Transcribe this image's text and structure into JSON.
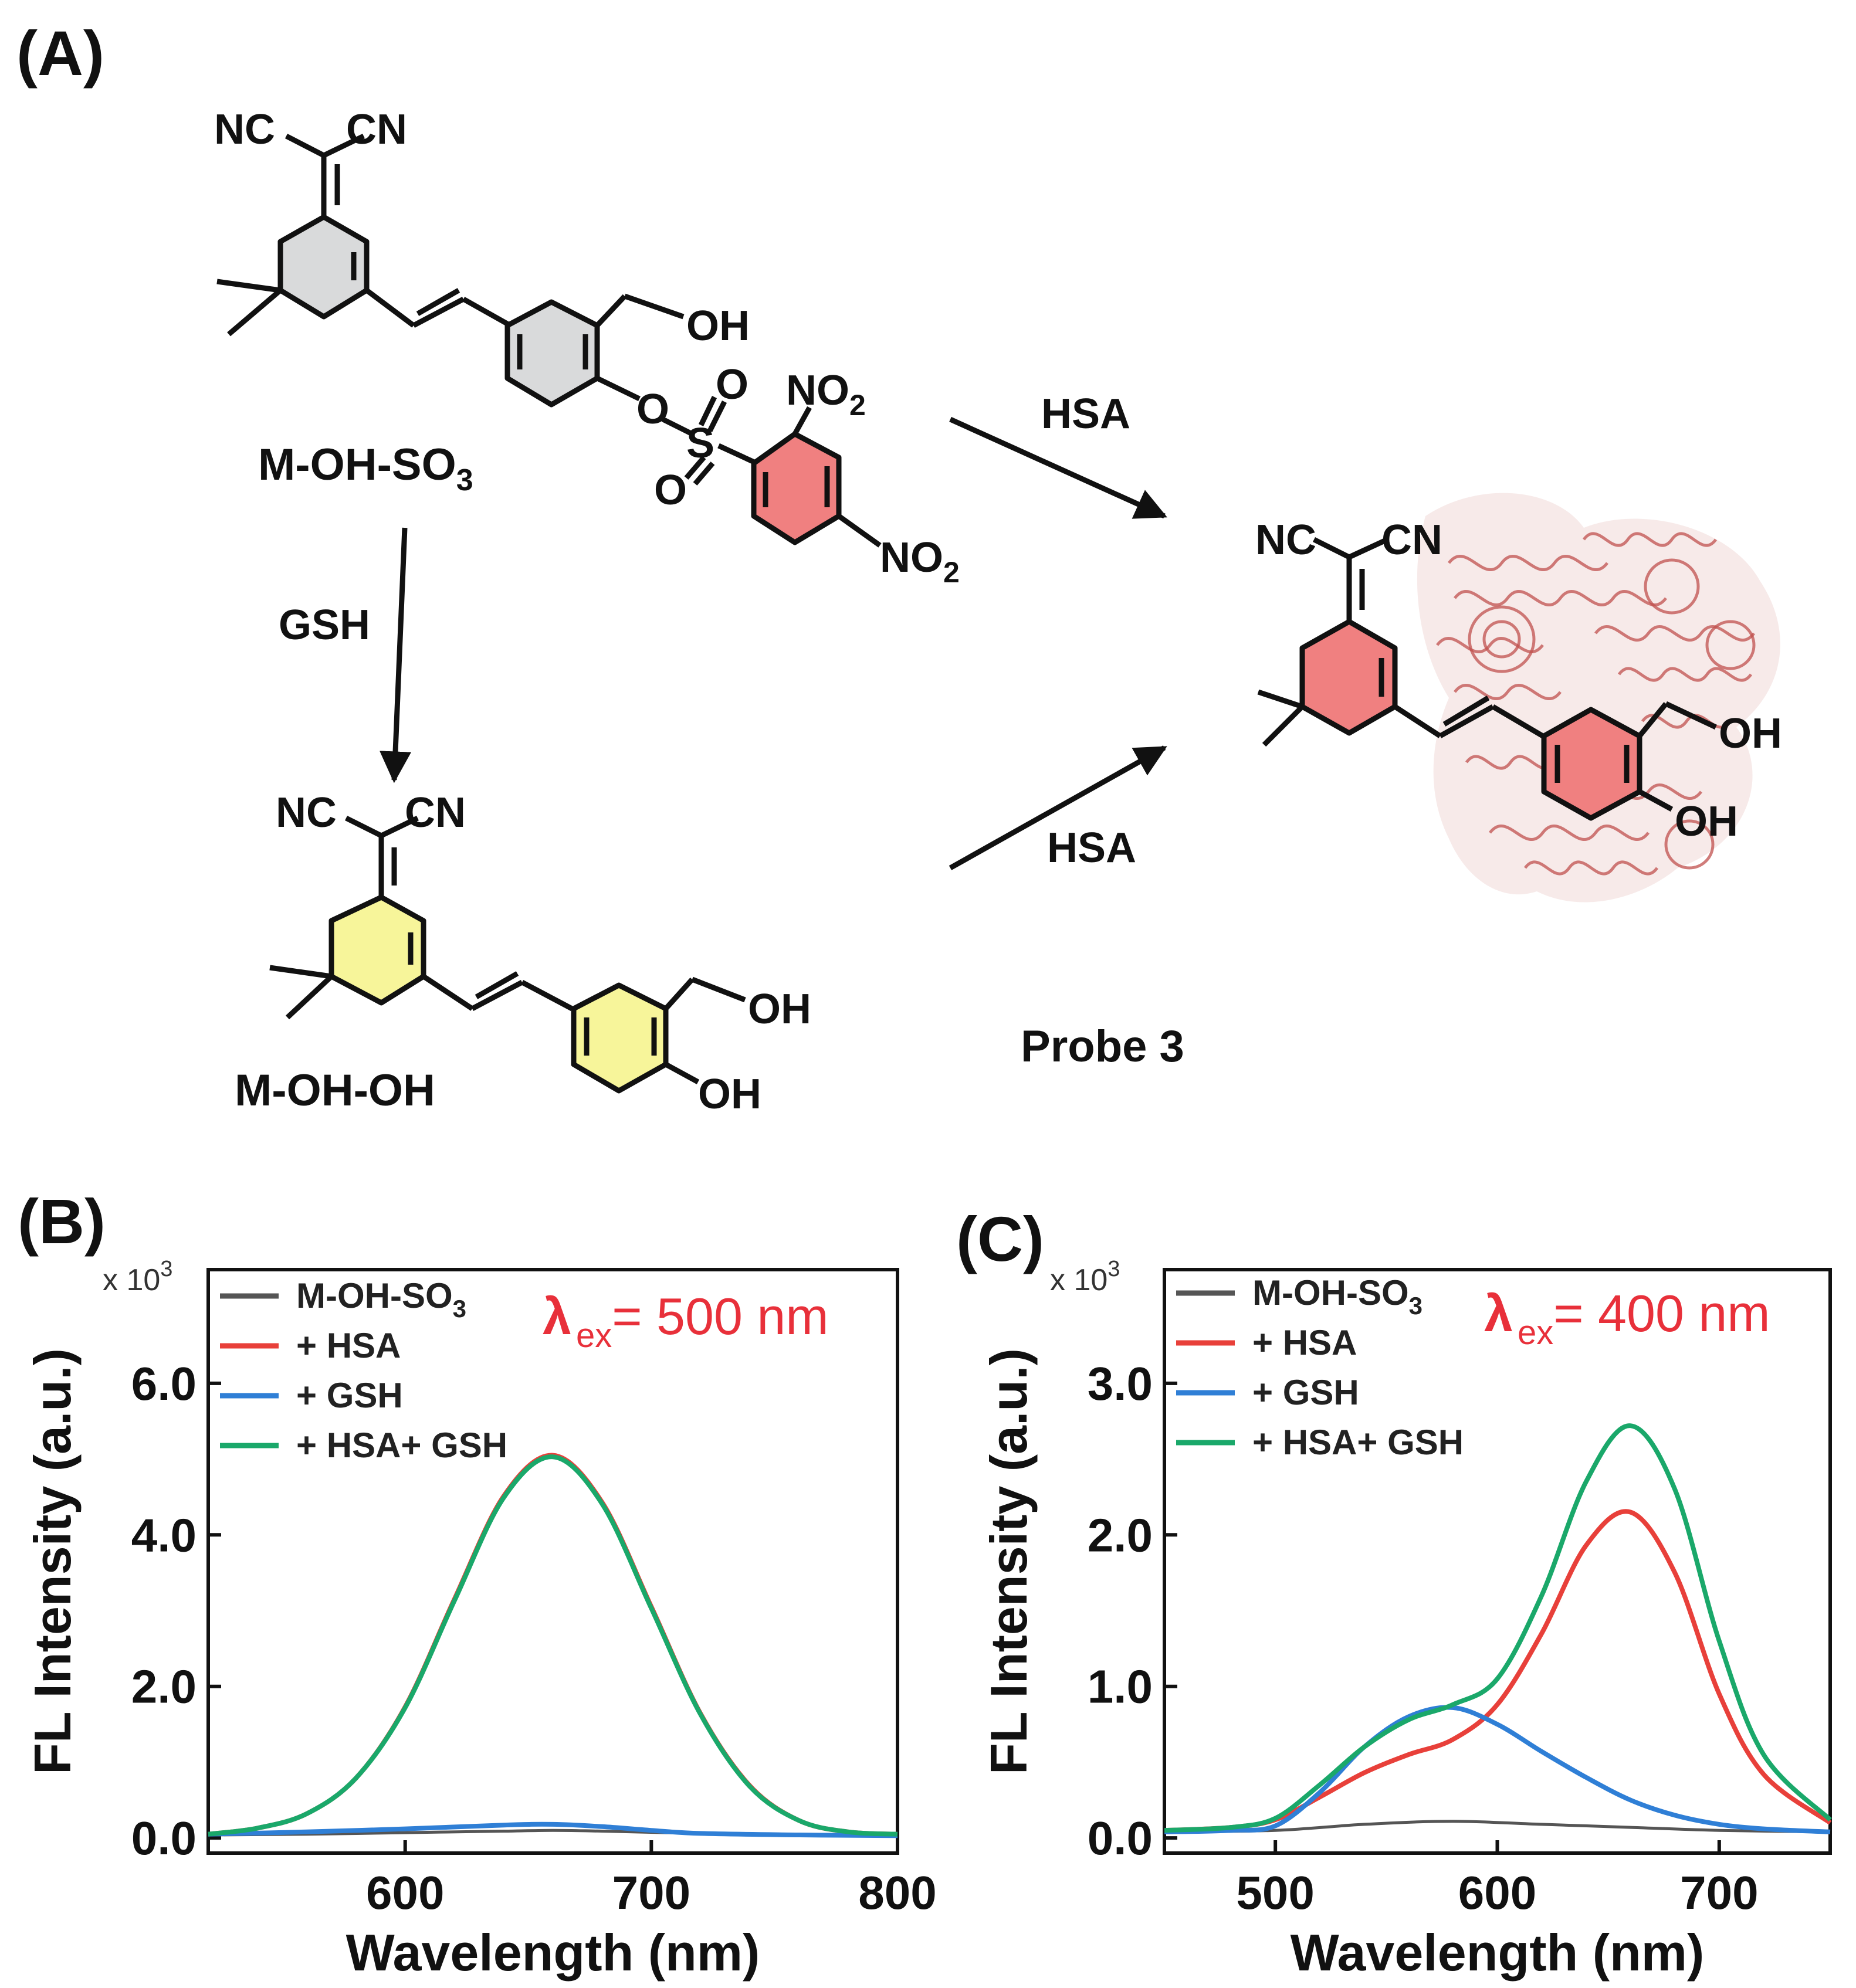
{
  "panel_a": {
    "label": "(A)",
    "arrow_top_label": "HSA",
    "arrow_bottom_label": "HSA",
    "arrow_down_label": "GSH",
    "compound_1": {
      "name": "M-OH-SO",
      "name_sub": "3",
      "nc": "NC",
      "cn": "CN",
      "oh": "OH",
      "o1": "O",
      "o2": "O",
      "o3": "O",
      "s": "S",
      "no2_1": "NO",
      "no2_1_sub": "2",
      "no2_2": "NO",
      "no2_2_sub": "2"
    },
    "compound_2": {
      "name": "M-OH-OH",
      "nc": "NC",
      "cn": "CN",
      "oh1": "OH",
      "oh2": "OH"
    },
    "compound_3": {
      "name": "Probe 3",
      "nc": "NC",
      "cn": "CN",
      "oh1": "OH",
      "oh2": "OH"
    },
    "colors": {
      "grey_ring": "#d9dadb",
      "yellow_ring": "#f7f59a",
      "red_ring": "#f08080",
      "protein": "#c0504d"
    }
  },
  "chart_data": [
    {
      "panel_label": "(B)",
      "type": "line",
      "xlabel": "Wavelength (nm)",
      "ylabel": "FL Intensity (a.u.)",
      "multiplier_label": "x 10",
      "multiplier_exp": "3",
      "annotation": {
        "lambda": "λ",
        "sub": "ex",
        "text": "= 500 nm"
      },
      "xlim": [
        520,
        800
      ],
      "ylim": [
        -0.2,
        7.5
      ],
      "xticks": [
        600,
        700,
        800
      ],
      "xtick_labels": [
        "600",
        "700",
        "800"
      ],
      "yticks": [
        0,
        2,
        4,
        6
      ],
      "ytick_labels": [
        "0.0",
        "2.0",
        "4.0",
        "6.0"
      ],
      "legend_position": "top-left",
      "series": [
        {
          "name": "M-OH-SO",
          "name_sub": "3",
          "color": "#555555",
          "x": [
            520,
            560,
            600,
            640,
            660,
            680,
            720,
            760,
            800
          ],
          "y": [
            0.04,
            0.05,
            0.07,
            0.09,
            0.1,
            0.09,
            0.06,
            0.04,
            0.03
          ]
        },
        {
          "name": "+ HSA",
          "name_sub": "",
          "color": "#e8403a",
          "x": [
            520,
            540,
            560,
            580,
            600,
            620,
            640,
            660,
            680,
            700,
            720,
            740,
            760,
            780,
            800
          ],
          "y": [
            0.05,
            0.13,
            0.32,
            0.79,
            1.73,
            3.15,
            4.51,
            5.05,
            4.43,
            3.05,
            1.64,
            0.69,
            0.23,
            0.08,
            0.05
          ]
        },
        {
          "name": "+ GSH",
          "name_sub": "",
          "color": "#2f7fd6",
          "x": [
            520,
            560,
            600,
            640,
            660,
            680,
            700,
            720,
            760,
            800
          ],
          "y": [
            0.05,
            0.08,
            0.12,
            0.17,
            0.18,
            0.15,
            0.1,
            0.06,
            0.04,
            0.03
          ]
        },
        {
          "name": "+ HSA+ GSH",
          "name_sub": "",
          "color": "#1aa86a",
          "x": [
            520,
            540,
            560,
            580,
            600,
            620,
            640,
            660,
            680,
            700,
            720,
            740,
            760,
            780,
            800
          ],
          "y": [
            0.05,
            0.13,
            0.32,
            0.79,
            1.72,
            3.13,
            4.49,
            5.03,
            4.41,
            3.03,
            1.63,
            0.68,
            0.23,
            0.08,
            0.05
          ]
        }
      ]
    },
    {
      "panel_label": "(C)",
      "type": "line",
      "xlabel": "Wavelength (nm)",
      "ylabel": "FL Intensity (a.u.)",
      "multiplier_label": "x 10",
      "multiplier_exp": "3",
      "annotation": {
        "lambda": "λ",
        "sub": "ex",
        "text": "= 400 nm"
      },
      "xlim": [
        450,
        750
      ],
      "ylim": [
        -0.1,
        3.75
      ],
      "xticks": [
        500,
        600,
        700
      ],
      "xtick_labels": [
        "500",
        "600",
        "700"
      ],
      "yticks": [
        0,
        1,
        2,
        3
      ],
      "ytick_labels": [
        "0.0",
        "1.0",
        "2.0",
        "3.0"
      ],
      "legend_position": "top-left",
      "series": [
        {
          "name": "M-OH-SO",
          "name_sub": "3",
          "color": "#555555",
          "x": [
            450,
            500,
            540,
            580,
            620,
            660,
            700,
            750
          ],
          "y": [
            0.04,
            0.05,
            0.09,
            0.11,
            0.09,
            0.07,
            0.05,
            0.04
          ]
        },
        {
          "name": "+ HSA",
          "name_sub": "",
          "color": "#e8403a",
          "x": [
            450,
            480,
            500,
            520,
            540,
            560,
            580,
            600,
            620,
            640,
            660,
            680,
            700,
            720,
            750
          ],
          "y": [
            0.05,
            0.07,
            0.12,
            0.27,
            0.43,
            0.55,
            0.65,
            0.88,
            1.35,
            1.93,
            2.15,
            1.75,
            0.95,
            0.42,
            0.1
          ]
        },
        {
          "name": "+ GSH",
          "name_sub": "",
          "color": "#2f7fd6",
          "x": [
            450,
            480,
            500,
            520,
            540,
            560,
            580,
            600,
            620,
            640,
            660,
            680,
            700,
            720,
            750
          ],
          "y": [
            0.04,
            0.05,
            0.08,
            0.3,
            0.6,
            0.8,
            0.86,
            0.75,
            0.57,
            0.4,
            0.25,
            0.15,
            0.09,
            0.06,
            0.04
          ]
        },
        {
          "name": "+ HSA+ GSH",
          "name_sub": "",
          "color": "#1aa86a",
          "x": [
            450,
            480,
            500,
            520,
            540,
            560,
            580,
            600,
            620,
            640,
            660,
            680,
            700,
            720,
            750
          ],
          "y": [
            0.05,
            0.07,
            0.13,
            0.35,
            0.6,
            0.78,
            0.88,
            1.05,
            1.6,
            2.35,
            2.72,
            2.3,
            1.3,
            0.55,
            0.12
          ]
        }
      ]
    }
  ]
}
